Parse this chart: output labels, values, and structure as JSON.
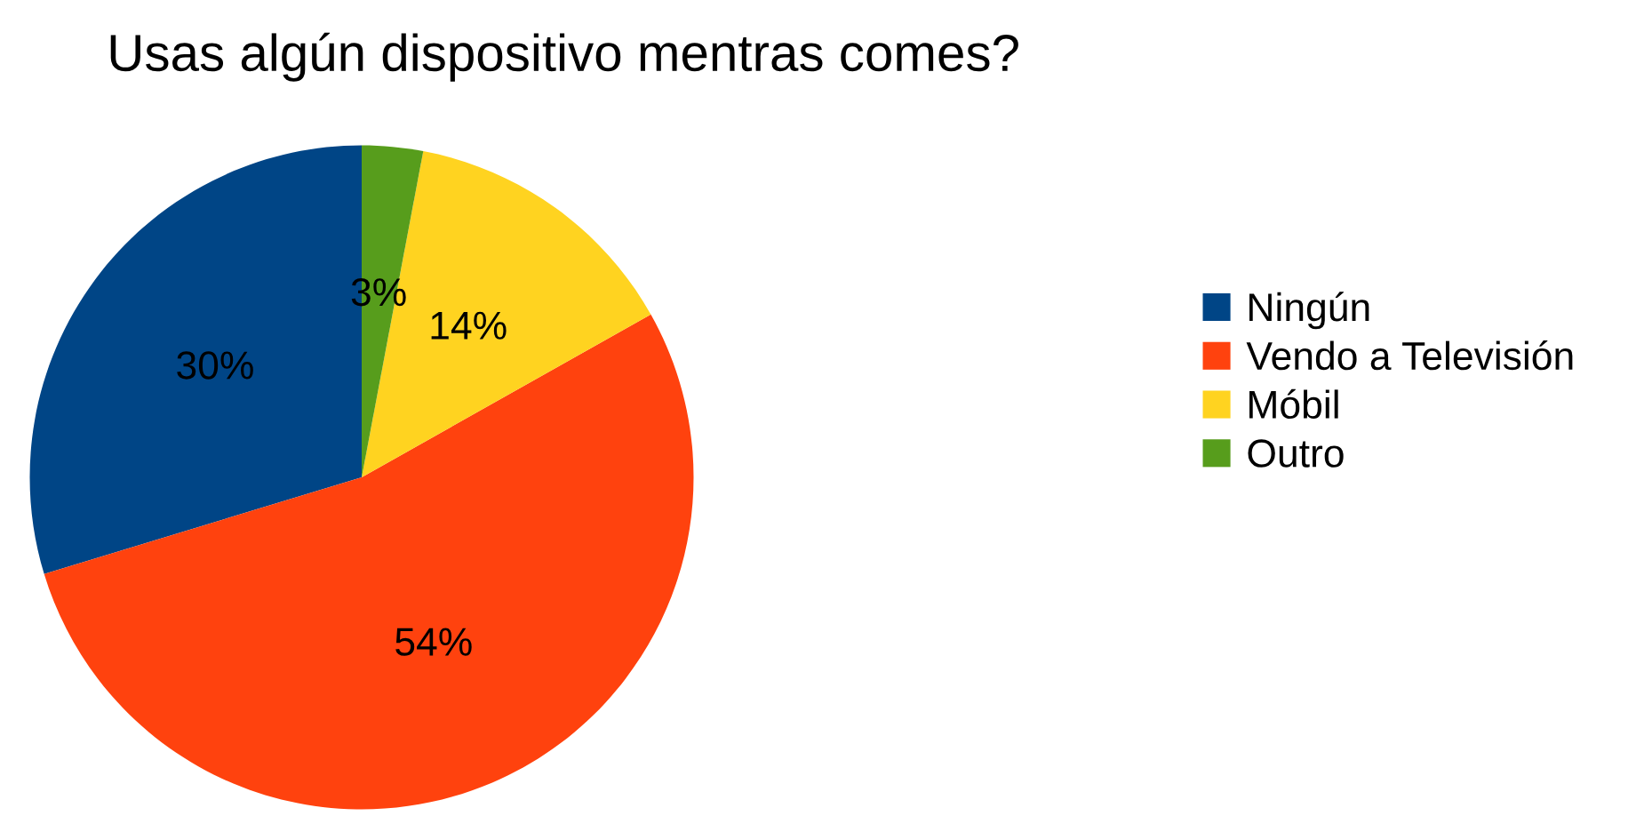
{
  "chart_data": {
    "type": "pie",
    "title": "Usas algún dispositivo mentras comes?",
    "categories": [
      "Ningún",
      "Vendo a Televisión",
      "Móbil",
      "Outro"
    ],
    "values": [
      30,
      54,
      14,
      3
    ],
    "colors": [
      "#004586",
      "#ff420e",
      "#ffd320",
      "#579d1c"
    ],
    "value_labels": [
      "30%",
      "54%",
      "14%",
      "3%"
    ],
    "legend": "right"
  }
}
